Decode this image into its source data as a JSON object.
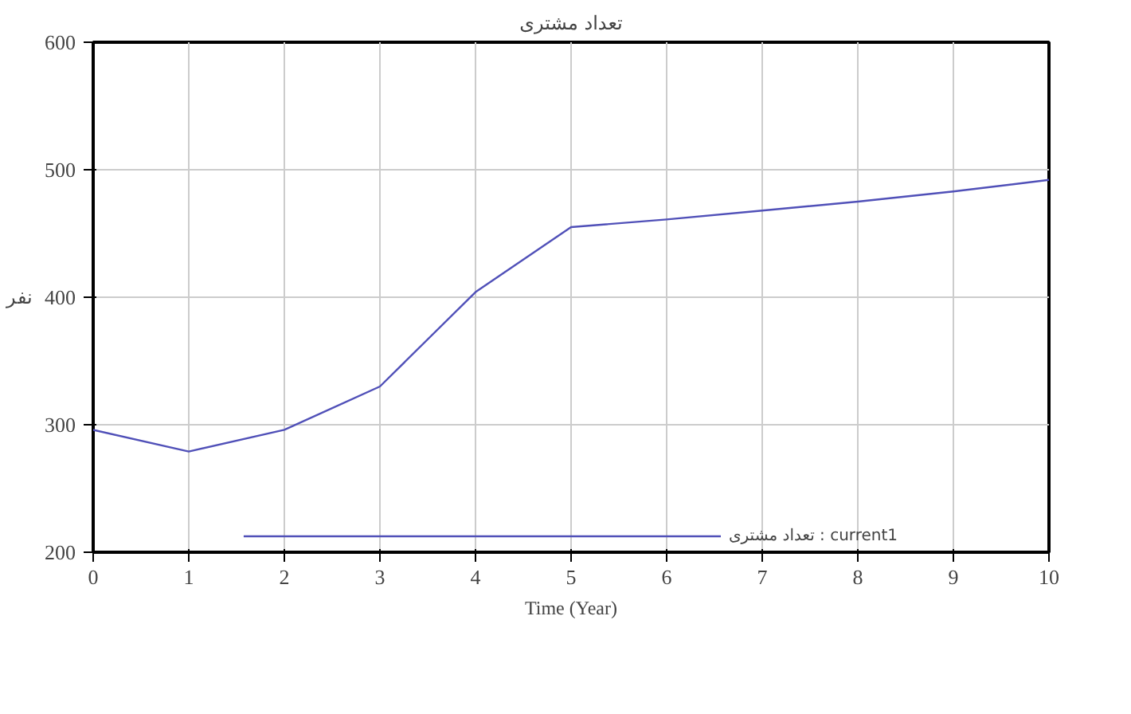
{
  "chart_data": {
    "type": "line",
    "title": "تعداد مشتری",
    "xlabel": "Time (Year)",
    "ylabel": "نفر",
    "x": [
      0,
      1,
      2,
      3,
      4,
      5,
      6,
      7,
      8,
      9,
      10
    ],
    "series": [
      {
        "name": "تعداد مشتری : current1",
        "color": "#5050b8",
        "values": [
          296,
          279,
          296,
          330,
          404,
          455,
          461,
          468,
          475,
          483,
          492
        ]
      }
    ],
    "xlim": [
      0,
      10
    ],
    "xticks": [
      0,
      1,
      2,
      3,
      4,
      5,
      6,
      7,
      8,
      9,
      10
    ],
    "ylim": [
      200,
      600
    ],
    "yticks": [
      200,
      300,
      400,
      500,
      600
    ],
    "grid": true,
    "legend": "bottom",
    "line_style": "solid",
    "marker": "none"
  }
}
